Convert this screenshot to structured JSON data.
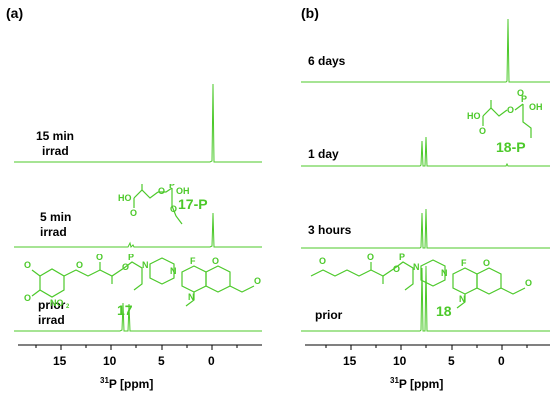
{
  "panel_a": {
    "label": "(a)",
    "traces": [
      {
        "label_line1": "15 min",
        "label_line2": "irrad"
      },
      {
        "label_line1": "5 min",
        "label_line2": "irrad"
      },
      {
        "label_line1": "prior",
        "label_line2": "irrad"
      }
    ],
    "compound_labels": [
      "17-P",
      "17"
    ],
    "ticks": [
      "15",
      "10",
      "5",
      "0"
    ],
    "axis_title_sup": "31",
    "axis_title": "P [ppm]"
  },
  "panel_b": {
    "label": "(b)",
    "traces": [
      {
        "label_line1": "6 days"
      },
      {
        "label_line1": "1 day"
      },
      {
        "label_line1": "3 hours"
      },
      {
        "label_line1": "prior"
      }
    ],
    "compound_labels": [
      "18-P",
      "18"
    ],
    "ticks": [
      "15",
      "10",
      "5",
      "0"
    ],
    "axis_title_sup": "31",
    "axis_title": "P [ppm]"
  },
  "colors": {
    "trace": "#4cc92a",
    "structure": "#4cc92a",
    "axis": "#000000"
  }
}
